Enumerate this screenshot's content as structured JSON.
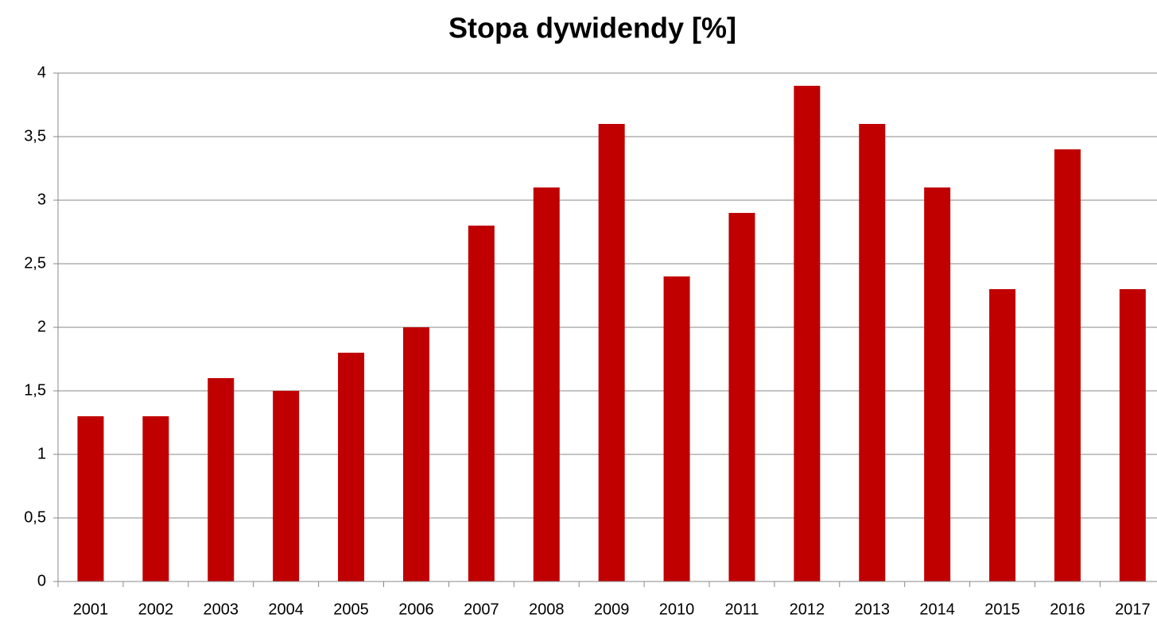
{
  "chart_data": {
    "type": "bar",
    "title": "Stopa dywidendy [%]",
    "categories": [
      "2001",
      "2002",
      "2003",
      "2004",
      "2005",
      "2006",
      "2007",
      "2008",
      "2009",
      "2010",
      "2011",
      "2012",
      "2013",
      "2014",
      "2015",
      "2016",
      "2017"
    ],
    "values": [
      1.3,
      1.3,
      1.6,
      1.5,
      1.8,
      2.0,
      2.8,
      3.1,
      3.6,
      2.4,
      2.9,
      3.9,
      3.6,
      3.1,
      2.3,
      3.4,
      2.3
    ],
    "color": "#c00000",
    "ylim": [
      0,
      4
    ],
    "yticks": [
      0,
      {
        "value": 0.5,
        "label": "0,5"
      },
      1,
      {
        "value": 1.5,
        "label": "1,5"
      },
      2,
      {
        "value": 2.5,
        "label": "2,5"
      },
      3,
      {
        "value": 3.5,
        "label": "3,5"
      },
      4
    ],
    "grid": true
  }
}
